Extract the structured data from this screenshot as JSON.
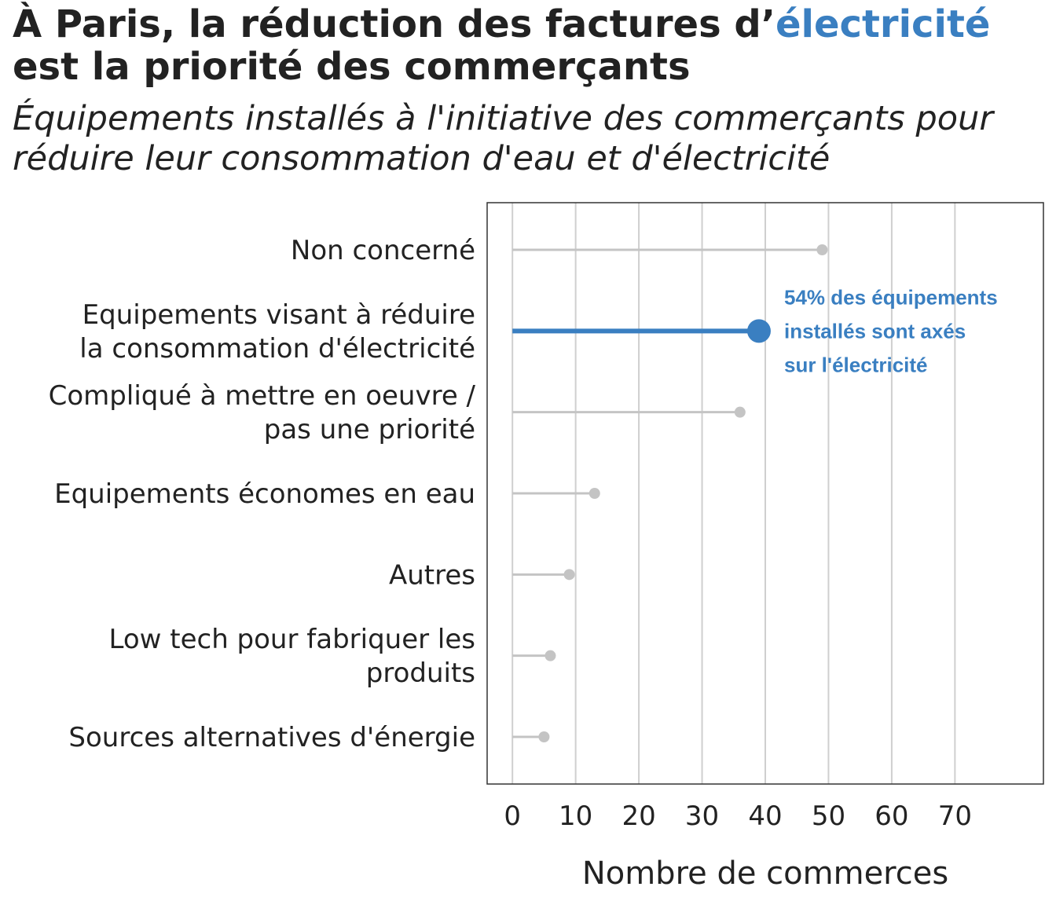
{
  "title": {
    "line1_prefix": "À Paris, la réduction des factures d’",
    "line1_highlight": "électricité",
    "line2": "est la priorité des commerçants"
  },
  "subtitle": {
    "line1": "Équipements installés à l'initiative des commerçants pour",
    "line2": "réduire leur consommation d'eau et d'électricité"
  },
  "colors": {
    "highlight": "#3a7fc1",
    "muted": "#c4c4c4",
    "grid": "#cfcfcf",
    "text": "#222222"
  },
  "chart_data": {
    "type": "lollipop",
    "orientation": "horizontal",
    "categories": [
      [
        "Non concerné"
      ],
      [
        "Equipements visant à réduire",
        "la consommation d'électricité"
      ],
      [
        "Compliqué à mettre en oeuvre /",
        "pas une priorité"
      ],
      [
        "Equipements économes en eau"
      ],
      [
        "Autres"
      ],
      [
        "Low tech pour fabriquer les",
        "produits"
      ],
      [
        "Sources alternatives d'énergie"
      ]
    ],
    "values": [
      49,
      39,
      36,
      13,
      9,
      6,
      5
    ],
    "highlight_index": 1,
    "xlabel": "Nombre de commerces",
    "xticks": [
      0,
      10,
      20,
      30,
      40,
      50,
      60,
      70
    ],
    "xlim": [
      -4,
      84
    ],
    "grid": "vertical",
    "annotation": {
      "lines": [
        "54% des équipements",
        "installés sont axés",
        "sur l'électricité"
      ],
      "category_index": 1
    }
  }
}
